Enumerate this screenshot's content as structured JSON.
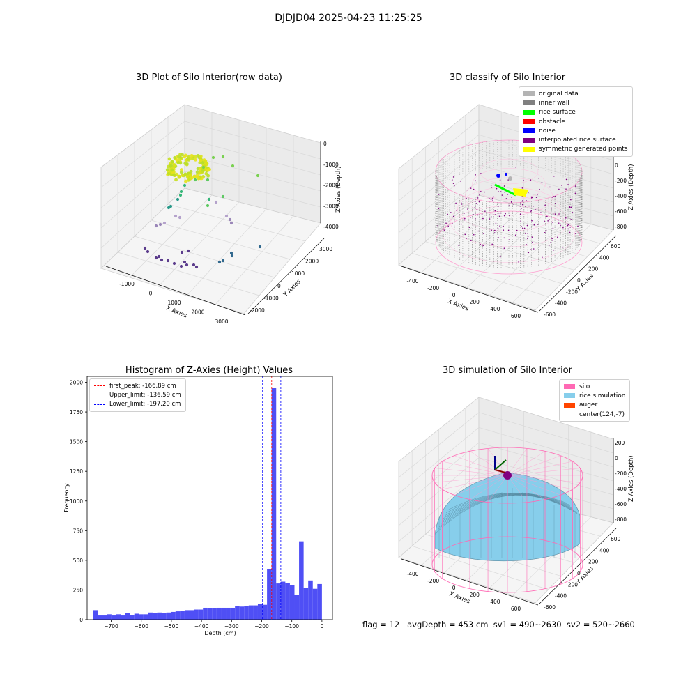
{
  "suptitle": "DJDJD04 2025-04-23 11:25:25",
  "panel1": {
    "title": "3D Plot of Silo Interior(row data)",
    "x_label": "X Axies",
    "y_label": "Y Axies",
    "z_label": "Z Axies (Depth)",
    "x_ticks": [
      "-1000",
      "0",
      "1000",
      "2000",
      "3000"
    ],
    "y_ticks": [
      "3000",
      "2000",
      "1000",
      "0",
      "-1000",
      "-2000"
    ],
    "z_ticks": [
      "0",
      "-1000",
      "-2000",
      "-3000",
      "-4000"
    ]
  },
  "panel2": {
    "title": "3D classify of Silo Interior",
    "x_label": "X Axies",
    "y_label": "Y Axies",
    "z_label": "Z Axies (Depth)",
    "x_ticks": [
      "-400",
      "-200",
      "0",
      "200",
      "400",
      "600"
    ],
    "y_ticks": [
      "600",
      "400",
      "200",
      "0",
      "-200",
      "-400",
      "-600"
    ],
    "z_ticks": [
      "200",
      "0",
      "-200",
      "-400",
      "-600",
      "-800"
    ],
    "legend": [
      {
        "label": "original data",
        "color": "#b4b4b4"
      },
      {
        "label": "inner wall",
        "color": "#808080"
      },
      {
        "label": "rice surface",
        "color": "#00ff00"
      },
      {
        "label": "obstacle",
        "color": "#ff0000"
      },
      {
        "label": "noise",
        "color": "#0000ff"
      },
      {
        "label": "interpolated rice surface",
        "color": "#800080"
      },
      {
        "label": "symmetric generated points",
        "color": "#ffff00"
      }
    ]
  },
  "panel3": {
    "title": "Histogram of Z-Axies (Height) Values",
    "legend": [
      {
        "label": "first_peak: -166.89 cm",
        "color": "#ff0000"
      },
      {
        "label": "Upper_limit: -136.59 cm",
        "color": "#0000ff"
      },
      {
        "label": "Lower_limit: -197.20 cm",
        "color": "#0000ff"
      }
    ]
  },
  "panel4": {
    "title": "3D simulation of Silo Interior",
    "x_label": "X Axies",
    "y_label": "Y Axies",
    "z_label": "Z Axies (Depth)",
    "x_ticks": [
      "-400",
      "-200",
      "0",
      "200",
      "400",
      "600"
    ],
    "y_ticks": [
      "600",
      "400",
      "200",
      "0",
      "-200",
      "-400",
      "-600"
    ],
    "z_ticks": [
      "200",
      "0",
      "-200",
      "-400",
      "-600",
      "-800"
    ],
    "legend": [
      {
        "label": "silo",
        "color": "#ff69b4"
      },
      {
        "label": "rice simulation",
        "color": "#87ceeb"
      },
      {
        "label": "auger",
        "color": "#ff4500"
      },
      {
        "label": "center(124,-7)",
        "color": "#ffffff"
      }
    ]
  },
  "footer": "flag = 12   avgDepth = 453 cm  sv1 = 490~2630  sv2 = 520~2660",
  "chart_data": {
    "type": "bar",
    "title": "Histogram of Z-Axies (Height) Values",
    "xlabel": "Depth (cm)",
    "ylabel": "Frequency",
    "xlim": [
      -780,
      35
    ],
    "ylim": [
      0,
      2050
    ],
    "xticks": [
      -700,
      -600,
      -500,
      -400,
      -300,
      -200,
      -100,
      0
    ],
    "yticks": [
      0,
      250,
      500,
      750,
      1000,
      1250,
      1500,
      1750,
      2000
    ],
    "bar_color": "#4b4bf5",
    "bin_start": -760,
    "bin_width": 15.2,
    "values": [
      80,
      35,
      35,
      45,
      35,
      45,
      35,
      55,
      40,
      50,
      45,
      45,
      60,
      55,
      60,
      55,
      60,
      65,
      70,
      75,
      80,
      80,
      85,
      85,
      100,
      95,
      95,
      100,
      100,
      100,
      100,
      115,
      110,
      115,
      120,
      120,
      130,
      125,
      425,
      1950,
      305,
      320,
      310,
      290,
      210,
      660,
      265,
      330,
      260,
      300
    ],
    "vlines": [
      {
        "x": -166.89,
        "color": "#ff0000"
      },
      {
        "x": -136.59,
        "color": "#0000ff"
      },
      {
        "x": -197.2,
        "color": "#0000ff"
      }
    ],
    "grid": false,
    "legend_position": "upper-left"
  }
}
